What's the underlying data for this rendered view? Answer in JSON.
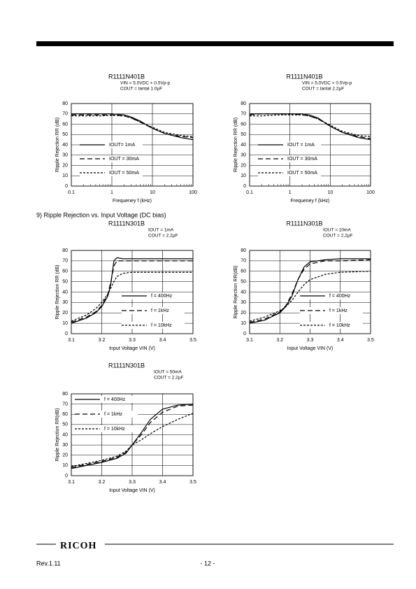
{
  "section_heading": "9)   Ripple Rejection vs. Input Voltage (DC bias)",
  "footer": {
    "brand": "RICOH",
    "revision": "Rev.1.11",
    "page": "- 12 -"
  },
  "chart_data": [
    {
      "type": "line",
      "title": "R1111N401B",
      "conditions": [
        "VIN = 5.0VDC + 0.5Vp-p",
        "COUT = tantal 1.0µF"
      ],
      "xlabel": "Frequeney f (kHz)",
      "ylabel": "Ripple Rejection RR (dB)",
      "log_x": true,
      "grid": true,
      "legend": "lower left",
      "x": [
        0.1,
        0.2,
        0.5,
        1,
        2,
        3,
        5,
        10,
        20,
        50,
        100
      ],
      "xlim": [
        0.1,
        100
      ],
      "xticks": [
        0.1,
        1,
        10,
        100
      ],
      "ylim": [
        0,
        80
      ],
      "yticks": [
        0,
        10,
        20,
        30,
        40,
        50,
        60,
        70,
        80
      ],
      "series": [
        {
          "name": "IOUT= 1mA",
          "color": "#000000",
          "style": "solid",
          "values": [
            70,
            70,
            70,
            70,
            69,
            67,
            63,
            56,
            51,
            47,
            45
          ]
        },
        {
          "name": "IOUT = 30mA",
          "color": "#000000",
          "style": "long-dash",
          "values": [
            69,
            69,
            69,
            69,
            68,
            66,
            62,
            56,
            51,
            48,
            47
          ]
        },
        {
          "name": "IOUT = 50mA",
          "color": "#000000",
          "style": "short-dash",
          "values": [
            68,
            68,
            68,
            68.5,
            68,
            66,
            62,
            57,
            52,
            49,
            48
          ]
        }
      ]
    },
    {
      "type": "line",
      "title": "R1111N401B",
      "conditions": [
        "VIN = 5.0VDC + 0.5Vp-p",
        "COUT = tantal 2.2µF"
      ],
      "xlabel": "Frequeney f (kHz)",
      "ylabel": "Ripple Rejection RR (dB)",
      "log_x": true,
      "grid": true,
      "legend": "lower left",
      "x": [
        0.1,
        0.2,
        0.5,
        1,
        2,
        3,
        5,
        10,
        20,
        50,
        100
      ],
      "xlim": [
        0.1,
        100
      ],
      "xticks": [
        0.1,
        1,
        10,
        100
      ],
      "ylim": [
        0,
        80
      ],
      "yticks": [
        0,
        10,
        20,
        30,
        40,
        50,
        60,
        70,
        80
      ],
      "series": [
        {
          "name": "IOUT = 1mA",
          "color": "#000000",
          "style": "solid",
          "values": [
            70,
            70,
            70,
            70,
            70,
            69,
            66,
            58,
            52,
            47,
            45
          ]
        },
        {
          "name": "IOUT = 30mA",
          "color": "#000000",
          "style": "long-dash",
          "values": [
            69,
            70,
            70,
            70,
            69,
            68,
            65,
            58,
            52,
            48,
            46
          ]
        },
        {
          "name": "IOUT = 50mA",
          "color": "#000000",
          "style": "short-dash",
          "values": [
            68,
            68,
            69,
            69,
            69,
            68,
            65,
            59,
            53,
            49,
            48
          ]
        }
      ]
    },
    {
      "type": "line",
      "title": "R1111N301B",
      "conditions": [
        "IOUT = 1mA",
        "COUT = 2.2µF"
      ],
      "xlabel": "Input Voltage VIN (V)",
      "ylabel": "Ripple Rejection RR (dB)",
      "log_x": false,
      "grid": true,
      "legend": "lower right",
      "x": [
        3.1,
        3.15,
        3.18,
        3.2,
        3.22,
        3.23,
        3.24,
        3.25,
        3.27,
        3.3,
        3.4,
        3.5
      ],
      "xlim": [
        3.1,
        3.5
      ],
      "xticks": [
        3.1,
        3.2,
        3.3,
        3.4,
        3.5
      ],
      "ylim": [
        0,
        80
      ],
      "yticks": [
        0,
        10,
        20,
        30,
        40,
        50,
        60,
        70,
        80
      ],
      "series": [
        {
          "name": "f = 400Hz",
          "color": "#000000",
          "style": "solid",
          "values": [
            10,
            15,
            20,
            26,
            36,
            48,
            70,
            73,
            72,
            72,
            72,
            72
          ]
        },
        {
          "name": "f = 1kHz",
          "color": "#000000",
          "style": "long-dash",
          "values": [
            11,
            16,
            21,
            27,
            38,
            50,
            65,
            70,
            70,
            70,
            70,
            70
          ]
        },
        {
          "name": "f = 10kHz",
          "color": "#000000",
          "style": "short-dash",
          "values": [
            12,
            18,
            24,
            30,
            38,
            44,
            50,
            55,
            58,
            59,
            59,
            59
          ]
        }
      ]
    },
    {
      "type": "line",
      "title": "R1111N301B",
      "conditions": [
        "IOUT = 10mA",
        "COUT = 2.2µF"
      ],
      "xlabel": "Input Voltage VIN (V)",
      "ylabel": "Ripple Rejection RR(dB)",
      "log_x": false,
      "grid": true,
      "legend": "lower right",
      "x": [
        3.1,
        3.15,
        3.2,
        3.22,
        3.24,
        3.26,
        3.28,
        3.3,
        3.35,
        3.4,
        3.5
      ],
      "xlim": [
        3.1,
        3.5
      ],
      "xticks": [
        3.1,
        3.2,
        3.3,
        3.4,
        3.5
      ],
      "ylim": [
        0,
        80
      ],
      "yticks": [
        0,
        10,
        20,
        30,
        40,
        50,
        60,
        70,
        80
      ],
      "series": [
        {
          "name": "f = 400Hz",
          "color": "#000000",
          "style": "solid",
          "values": [
            10,
            13,
            20,
            26,
            36,
            52,
            64,
            69,
            71,
            72,
            72
          ]
        },
        {
          "name": "f = 1kHz",
          "color": "#000000",
          "style": "long-dash",
          "values": [
            11,
            14,
            21,
            27,
            38,
            52,
            62,
            67,
            70,
            70,
            71
          ]
        },
        {
          "name": "f = 10kHz",
          "color": "#000000",
          "style": "short-dash",
          "values": [
            12,
            16,
            22,
            26,
            32,
            40,
            47,
            52,
            57,
            59,
            60
          ]
        }
      ]
    },
    {
      "type": "line",
      "title": "R1111N301B",
      "conditions": [
        "IOUT = 50mA",
        "COUT = 2.2µF"
      ],
      "xlabel": "Input Voltage VIN (V)",
      "ylabel": "Ripple Rejection RR(dB)",
      "log_x": false,
      "grid": true,
      "legend": "upper left",
      "x": [
        3.1,
        3.15,
        3.2,
        3.25,
        3.28,
        3.3,
        3.33,
        3.36,
        3.4,
        3.45,
        3.5
      ],
      "xlim": [
        3.1,
        3.5
      ],
      "xticks": [
        3.1,
        3.2,
        3.3,
        3.4,
        3.5
      ],
      "ylim": [
        0,
        80
      ],
      "yticks": [
        0,
        10,
        20,
        30,
        40,
        50,
        60,
        70,
        80
      ],
      "series": [
        {
          "name": "f = 400Hz",
          "color": "#000000",
          "style": "solid",
          "values": [
            7,
            10,
            13,
            17,
            22,
            30,
            42,
            55,
            65,
            69,
            70
          ]
        },
        {
          "name": "f = 1kHz",
          "color": "#000000",
          "style": "long-dash",
          "values": [
            8,
            11,
            14,
            18,
            23,
            30,
            40,
            52,
            62,
            68,
            69
          ]
        },
        {
          "name": "f = 10kHz",
          "color": "#000000",
          "style": "short-dash",
          "values": [
            9,
            12,
            15,
            19,
            24,
            30,
            35,
            41,
            48,
            55,
            61
          ]
        }
      ]
    }
  ]
}
